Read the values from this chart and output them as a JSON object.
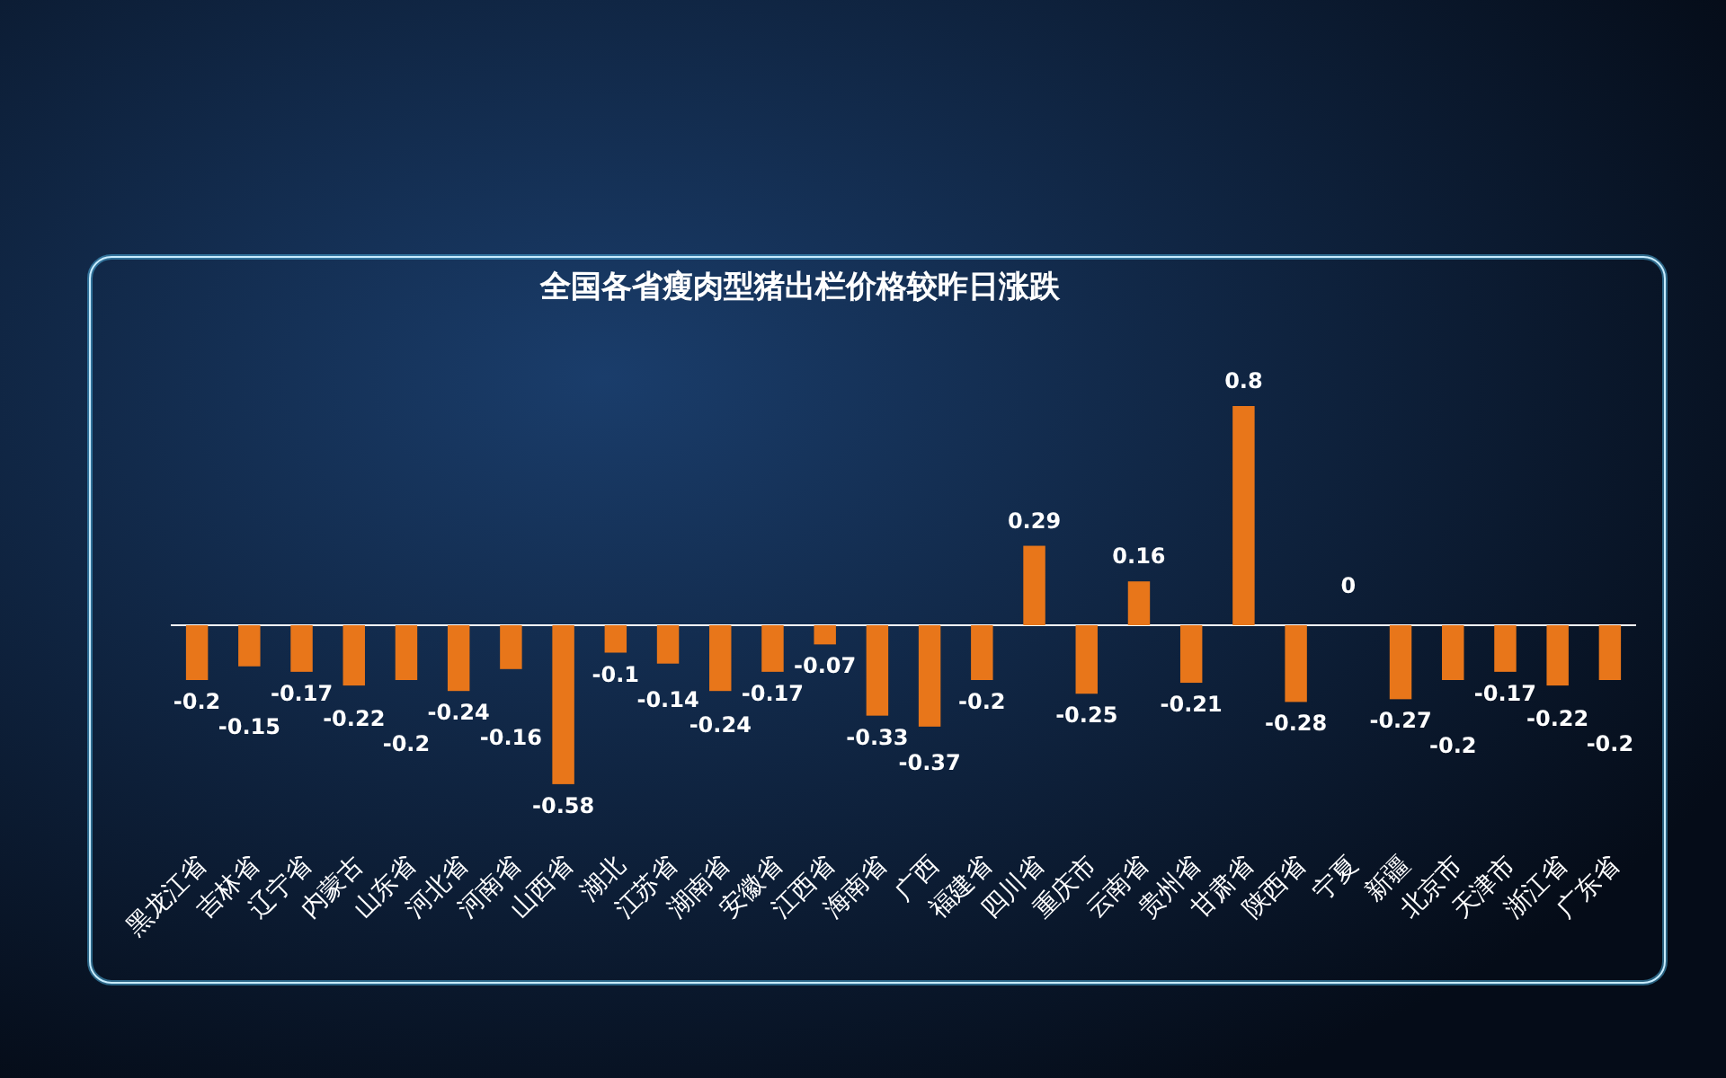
{
  "chart_data": {
    "type": "bar",
    "title": "全国各省瘦肉型猪出栏价格较昨日涨跌",
    "categories": [
      "黑龙江省",
      "吉林省",
      "辽宁省",
      "内蒙古",
      "山东省",
      "河北省",
      "河南省",
      "山西省",
      "湖北",
      "江苏省",
      "湖南省",
      "安徽省",
      "江西省",
      "海南省",
      "广西",
      "福建省",
      "四川省",
      "重庆市",
      "云南省",
      "贵州省",
      "甘肃省",
      "陕西省",
      "宁夏",
      "新疆",
      "北京市",
      "天津市",
      "浙江省",
      "广东省"
    ],
    "values": [
      -0.2,
      -0.15,
      -0.17,
      -0.22,
      -0.2,
      -0.24,
      -0.16,
      -0.58,
      -0.1,
      -0.14,
      -0.24,
      -0.17,
      -0.07,
      -0.33,
      -0.37,
      -0.2,
      0.29,
      -0.25,
      0.16,
      -0.21,
      0.8,
      -0.28,
      0,
      -0.27,
      -0.2,
      -0.17,
      -0.22,
      -0.2
    ],
    "color": "#e8761a",
    "data_labels": true
  }
}
